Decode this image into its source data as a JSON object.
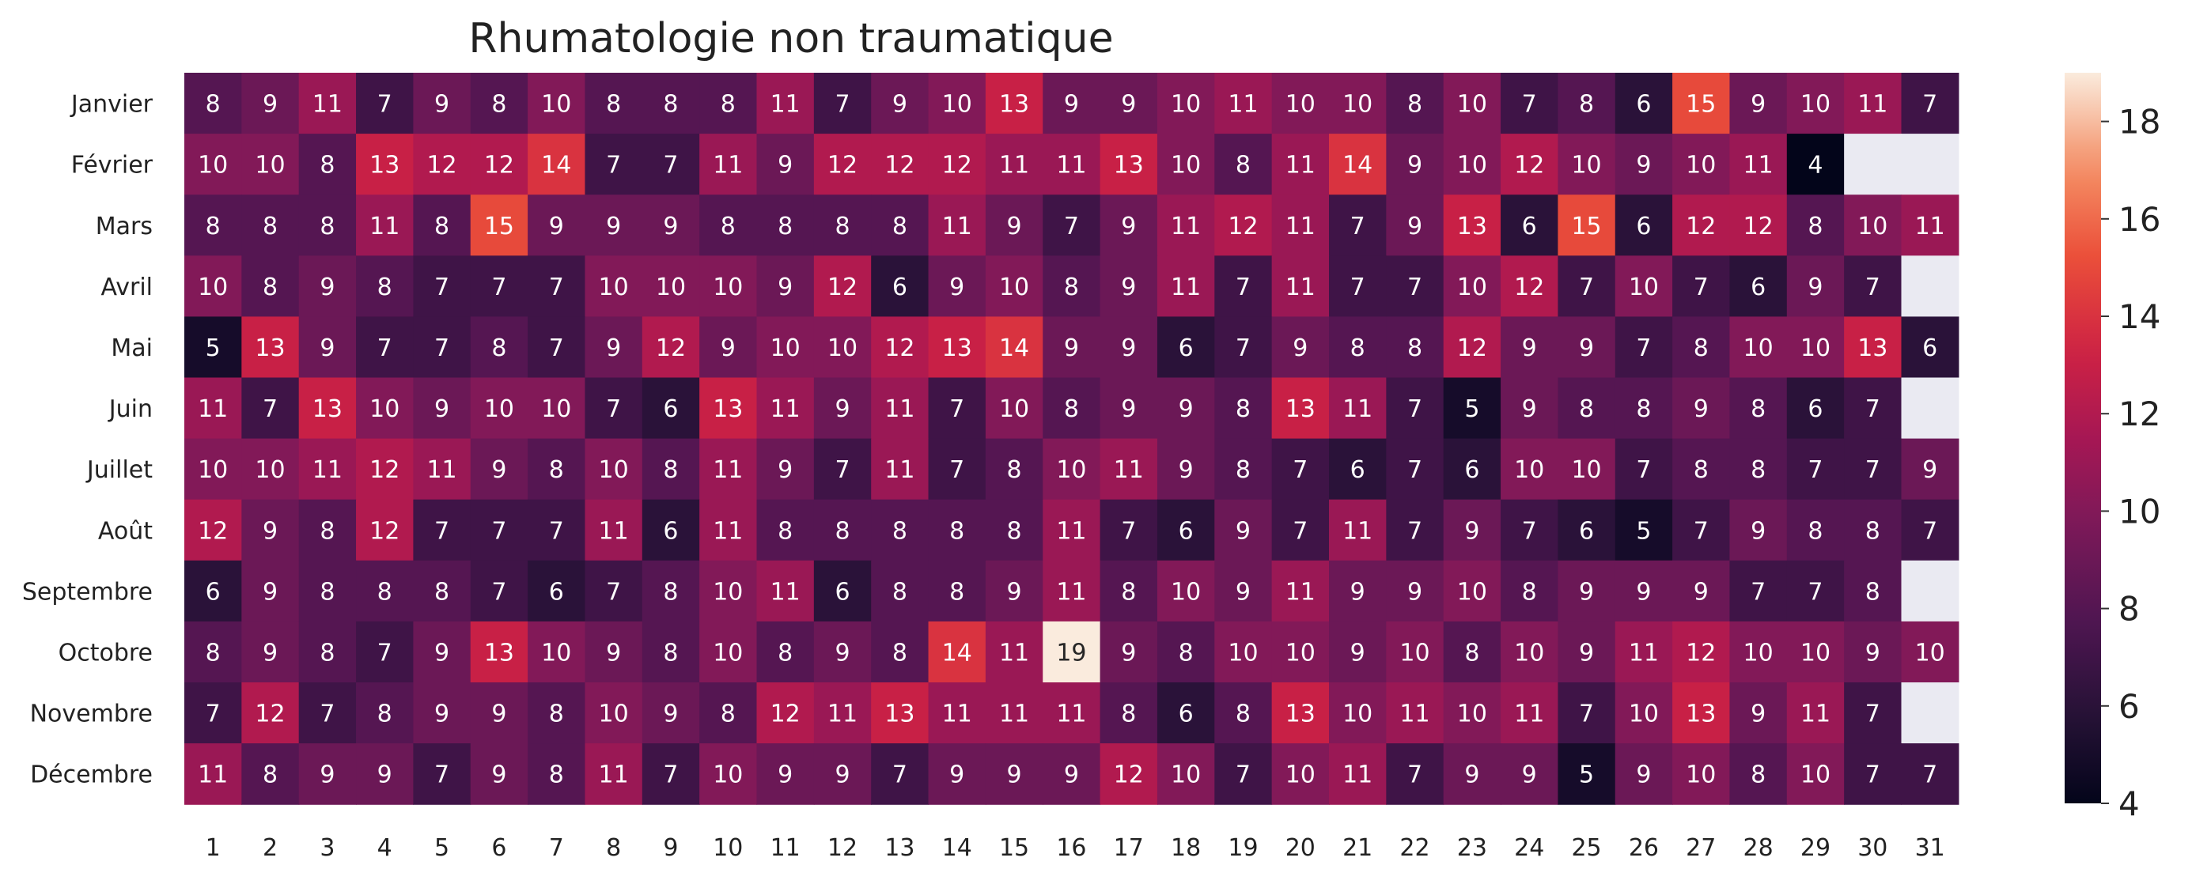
{
  "chart_data": {
    "type": "heatmap",
    "title": "Rhumatologie non traumatique",
    "xlabel": "",
    "ylabel": "",
    "rows": [
      "Janvier",
      "Février",
      "Mars",
      "Avril",
      "Mai",
      "Juin",
      "Juillet",
      "Août",
      "Septembre",
      "Octobre",
      "Novembre",
      "Décembre"
    ],
    "columns": [
      "1",
      "2",
      "3",
      "4",
      "5",
      "6",
      "7",
      "8",
      "9",
      "10",
      "11",
      "12",
      "13",
      "14",
      "15",
      "16",
      "17",
      "18",
      "19",
      "20",
      "21",
      "22",
      "23",
      "24",
      "25",
      "26",
      "27",
      "28",
      "29",
      "30",
      "31"
    ],
    "values": [
      [
        8,
        9,
        11,
        7,
        9,
        8,
        10,
        8,
        8,
        8,
        11,
        7,
        9,
        10,
        13,
        9,
        9,
        10,
        11,
        10,
        10,
        8,
        10,
        7,
        8,
        6,
        15,
        9,
        10,
        11,
        7
      ],
      [
        10,
        10,
        8,
        13,
        12,
        12,
        14,
        7,
        7,
        11,
        9,
        12,
        12,
        12,
        11,
        11,
        13,
        10,
        8,
        11,
        14,
        9,
        10,
        12,
        10,
        9,
        10,
        11,
        4,
        null,
        null
      ],
      [
        8,
        8,
        8,
        11,
        8,
        15,
        9,
        9,
        9,
        8,
        8,
        8,
        8,
        11,
        9,
        7,
        9,
        11,
        12,
        11,
        7,
        9,
        13,
        6,
        15,
        6,
        12,
        12,
        8,
        10,
        11
      ],
      [
        10,
        8,
        9,
        8,
        7,
        7,
        7,
        10,
        10,
        10,
        9,
        12,
        6,
        9,
        10,
        8,
        9,
        11,
        7,
        11,
        7,
        7,
        10,
        12,
        7,
        10,
        7,
        6,
        9,
        7,
        null
      ],
      [
        5,
        13,
        9,
        7,
        7,
        8,
        7,
        9,
        12,
        9,
        10,
        10,
        12,
        13,
        14,
        9,
        9,
        6,
        7,
        9,
        8,
        8,
        12,
        9,
        9,
        7,
        8,
        10,
        10,
        13,
        6
      ],
      [
        11,
        7,
        13,
        10,
        9,
        10,
        10,
        7,
        6,
        13,
        11,
        9,
        11,
        7,
        10,
        8,
        9,
        9,
        8,
        13,
        11,
        7,
        5,
        9,
        8,
        8,
        9,
        8,
        6,
        7,
        null
      ],
      [
        10,
        10,
        11,
        12,
        11,
        9,
        8,
        10,
        8,
        11,
        9,
        7,
        11,
        7,
        8,
        10,
        11,
        9,
        8,
        7,
        6,
        7,
        6,
        10,
        10,
        7,
        8,
        8,
        7,
        7,
        9
      ],
      [
        12,
        9,
        8,
        12,
        7,
        7,
        7,
        11,
        6,
        11,
        8,
        8,
        8,
        8,
        8,
        11,
        7,
        6,
        9,
        7,
        11,
        7,
        9,
        7,
        6,
        5,
        7,
        9,
        8,
        8,
        7
      ],
      [
        6,
        9,
        8,
        8,
        8,
        7,
        6,
        7,
        8,
        10,
        11,
        6,
        8,
        8,
        9,
        11,
        8,
        10,
        9,
        11,
        9,
        9,
        10,
        8,
        9,
        9,
        9,
        7,
        7,
        8,
        null
      ],
      [
        8,
        9,
        8,
        7,
        9,
        13,
        10,
        9,
        8,
        10,
        8,
        9,
        8,
        14,
        11,
        19,
        9,
        8,
        10,
        10,
        9,
        10,
        8,
        10,
        9,
        11,
        12,
        10,
        10,
        9,
        10
      ],
      [
        7,
        12,
        7,
        8,
        9,
        9,
        8,
        10,
        9,
        8,
        12,
        11,
        13,
        11,
        11,
        11,
        8,
        6,
        8,
        13,
        10,
        11,
        10,
        11,
        7,
        10,
        13,
        9,
        11,
        7,
        null
      ],
      [
        11,
        8,
        9,
        9,
        7,
        9,
        8,
        11,
        7,
        10,
        9,
        9,
        7,
        9,
        9,
        9,
        12,
        10,
        7,
        10,
        11,
        7,
        9,
        9,
        5,
        9,
        10,
        8,
        10,
        7,
        7
      ]
    ],
    "colorbar": {
      "colormap": "rocket",
      "vmin": 4,
      "vmax": 19,
      "ticks": [
        "4",
        "6",
        "8",
        "10",
        "12",
        "14",
        "16",
        "18"
      ]
    },
    "missing_color": "#eaeaf2",
    "grid": false,
    "legend": "colorbar-right"
  }
}
